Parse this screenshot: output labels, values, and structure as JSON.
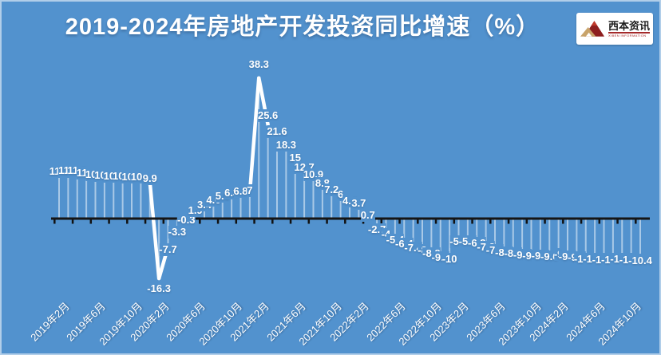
{
  "title": "2019-2024年房地产开发投资同比增速（%）",
  "logo": {
    "name": "西本资讯",
    "subtitle": "XIBEN INFORMATION"
  },
  "colors": {
    "background": "#5292CE",
    "axis": "#151515",
    "tick": "#111111",
    "series_line": "#ffffff",
    "drop_line": "rgba(255,255,255,0.5)",
    "label_text": "#ffffff",
    "border": "rgba(255,255,255,0.55)"
  },
  "chart_data": {
    "type": "line",
    "title": "2019-2024年房地产开发投资同比增速（%）",
    "unit": "%",
    "data_labels_shown": true,
    "grid": false,
    "axis_position": "zero",
    "ylim": [
      -20,
      42
    ],
    "values": [
      11.6,
      11.8,
      11.9,
      11.2,
      10.9,
      10.6,
      10.5,
      10.5,
      10.3,
      10.2,
      9.9,
      -16.3,
      -7.7,
      -3.3,
      -0.3,
      1.9,
      3.4,
      4.6,
      5.6,
      6.3,
      6.8,
      7,
      38.3,
      25.6,
      21.6,
      18.3,
      15,
      12.7,
      10.9,
      8.8,
      7.2,
      6,
      4.4,
      3.7,
      0.7,
      -2.7,
      -4,
      -5.4,
      -6.4,
      -7.4,
      -8,
      -8.8,
      -9.8,
      -10,
      -5.7,
      -5.8,
      -6.2,
      -7.2,
      -7.9,
      -8.5,
      -8.8,
      -9.1,
      -9.3,
      -9.4,
      -9.6,
      -9,
      -9.5,
      -9.8,
      -10.1,
      -10.1,
      -10.2,
      -10.2,
      -10.1,
      -10.3,
      -10.4
    ],
    "x_tick_labels": [
      {
        "index": 0,
        "label": "2019年2月"
      },
      {
        "index": 4,
        "label": "2019年6月"
      },
      {
        "index": 8,
        "label": "2019年10月"
      },
      {
        "index": 11,
        "label": "2020年2月"
      },
      {
        "index": 15,
        "label": "2020年6月"
      },
      {
        "index": 19,
        "label": "2020年10月"
      },
      {
        "index": 22,
        "label": "2021年2月"
      },
      {
        "index": 26,
        "label": "2021年6月"
      },
      {
        "index": 30,
        "label": "2021年10月"
      },
      {
        "index": 33,
        "label": "2022年2月"
      },
      {
        "index": 37,
        "label": "2022年6月"
      },
      {
        "index": 41,
        "label": "2022年10月"
      },
      {
        "index": 44,
        "label": "2023年2月"
      },
      {
        "index": 48,
        "label": "2023年6月"
      },
      {
        "index": 52,
        "label": "2023年10月"
      },
      {
        "index": 55,
        "label": "2024年2月"
      },
      {
        "index": 59,
        "label": "2024年6月"
      },
      {
        "index": 63,
        "label": "2024年10月"
      }
    ]
  }
}
